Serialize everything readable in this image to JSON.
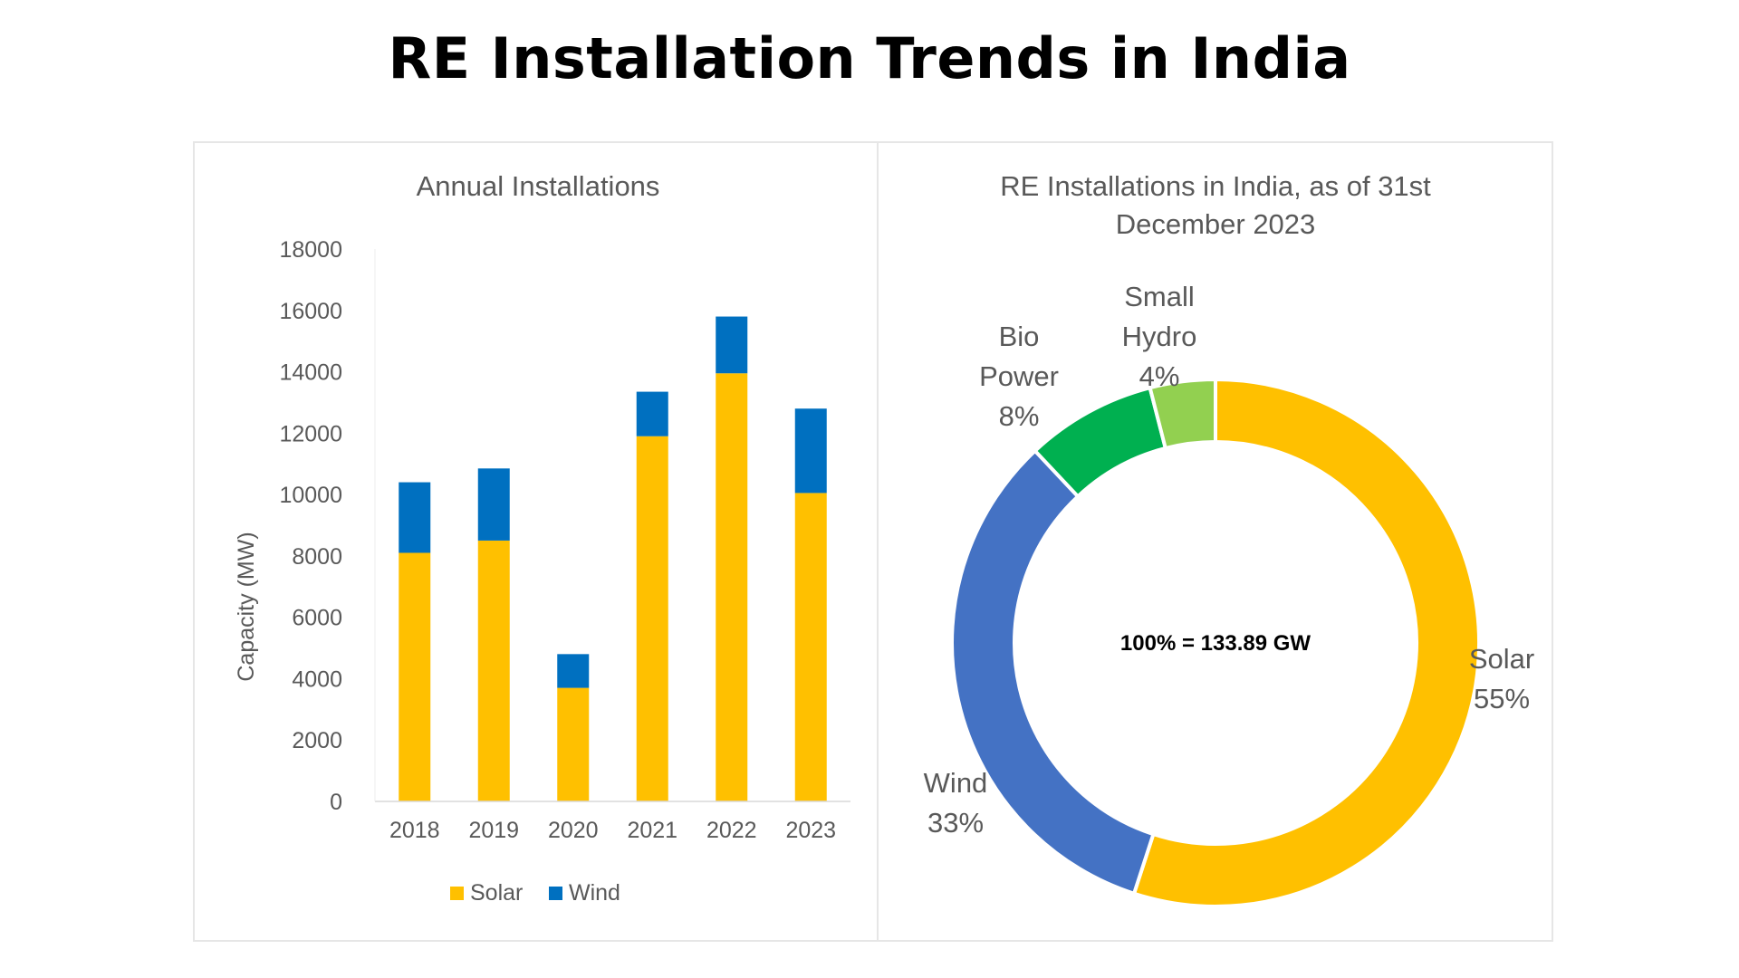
{
  "page": {
    "title": "RE Installation Trends in India"
  },
  "colors": {
    "solar": "#FFC000",
    "wind": "#0070C0",
    "wind_donut": "#4472C4",
    "bio_power": "#00B050",
    "small_hydro": "#92D050",
    "axis_text": "#595959",
    "title_text": "#595959",
    "axis_line": "#d9d9d9"
  },
  "chart_data": [
    {
      "type": "bar",
      "stacked": true,
      "title": "Annual Installations",
      "xlabel": "",
      "ylabel": "Capacity (MW)",
      "ylim": [
        0,
        18000
      ],
      "yticks": [
        0,
        2000,
        4000,
        6000,
        8000,
        10000,
        12000,
        14000,
        16000,
        18000
      ],
      "grid": false,
      "legend": "bottom",
      "categories": [
        "2018",
        "2019",
        "2020",
        "2021",
        "2022",
        "2023"
      ],
      "series": [
        {
          "name": "Solar",
          "values": [
            8100,
            8500,
            3700,
            11900,
            13950,
            10050
          ]
        },
        {
          "name": "Wind",
          "values": [
            2300,
            2350,
            1100,
            1450,
            1850,
            2750
          ]
        }
      ]
    },
    {
      "type": "pie",
      "donut": true,
      "title_lines": [
        "RE Installations in India, as of 31st",
        "December 2023"
      ],
      "center_label": "100% = 133.89 GW",
      "legend": "none",
      "slices": [
        {
          "name": "Solar",
          "value": 55,
          "label_lines": [
            "Solar",
            "55%"
          ]
        },
        {
          "name": "Wind",
          "value": 33,
          "label_lines": [
            "Wind",
            "33%"
          ]
        },
        {
          "name": "Bio Power",
          "value": 8,
          "label_lines": [
            "Bio",
            "Power",
            "8%"
          ]
        },
        {
          "name": "Small Hydro",
          "value": 4,
          "label_lines": [
            "Small",
            "Hydro",
            "4%"
          ]
        }
      ]
    }
  ]
}
